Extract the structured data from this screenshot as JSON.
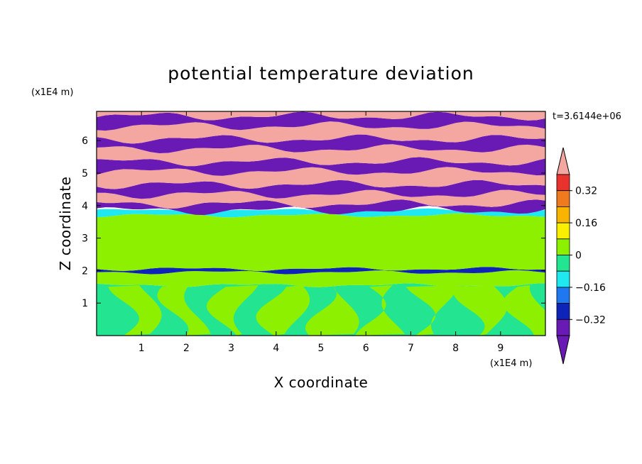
{
  "chart_data": {
    "type": "heatmap",
    "title": "potential temperature deviation",
    "xlabel": "X coordinate",
    "ylabel": "Z coordinate",
    "x_unit": "(x1E4 m)",
    "y_unit": "(x1E4 m)",
    "time_label": "t=3.6144e+06",
    "xlim": [
      0,
      10
    ],
    "ylim": [
      0,
      6.9
    ],
    "x_ticks": [
      "1",
      "2",
      "3",
      "4",
      "5",
      "6",
      "7",
      "8",
      "9"
    ],
    "y_ticks": [
      "1",
      "2",
      "3",
      "4",
      "5",
      "6"
    ],
    "colorbar": {
      "levels": [
        -0.4,
        -0.32,
        -0.24,
        -0.16,
        -0.08,
        0,
        0.08,
        0.16,
        0.24,
        0.32,
        0.4
      ],
      "tick_labels": [
        "0.32",
        "0.16",
        "0",
        "−0.16",
        "−0.32"
      ],
      "tick_values": [
        0.32,
        0.16,
        0,
        -0.16,
        -0.32
      ],
      "colors": [
        "#e8322e",
        "#f07a1e",
        "#f8b400",
        "#f8f000",
        "#8cf000",
        "#23e591",
        "#20e8f0",
        "#1f78f0",
        "#0e24b8",
        "#6a1ab4"
      ],
      "over_color": "#f4a6a0",
      "under_color": "#6a1ab4"
    },
    "bands": [
      {
        "z0": 0.0,
        "z1": 1.55,
        "field": "mixed_green"
      },
      {
        "z0": 1.55,
        "z1": 1.95,
        "value": 0.04
      },
      {
        "z0": 1.95,
        "z1": 2.05,
        "value": -0.28
      },
      {
        "z0": 2.05,
        "z1": 3.7,
        "value": 0.0
      },
      {
        "z0": 3.7,
        "z1": 3.85,
        "value": -0.12
      },
      {
        "z0": 3.85,
        "z1": 4.05,
        "value": -0.36
      },
      {
        "z0": 4.05,
        "z1": 4.35,
        "value": 0.42
      },
      {
        "z0": 4.35,
        "z1": 4.65,
        "value": -0.42
      },
      {
        "z0": 4.65,
        "z1": 5.05,
        "value": 0.42
      },
      {
        "z0": 5.05,
        "z1": 5.35,
        "value": -0.42
      },
      {
        "z0": 5.35,
        "z1": 5.75,
        "value": 0.42
      },
      {
        "z0": 5.75,
        "z1": 6.05,
        "value": -0.42
      },
      {
        "z0": 6.05,
        "z1": 6.45,
        "value": 0.42
      },
      {
        "z0": 6.45,
        "z1": 6.75,
        "value": -0.42
      },
      {
        "z0": 6.75,
        "z1": 6.9,
        "value": 0.42
      }
    ]
  }
}
